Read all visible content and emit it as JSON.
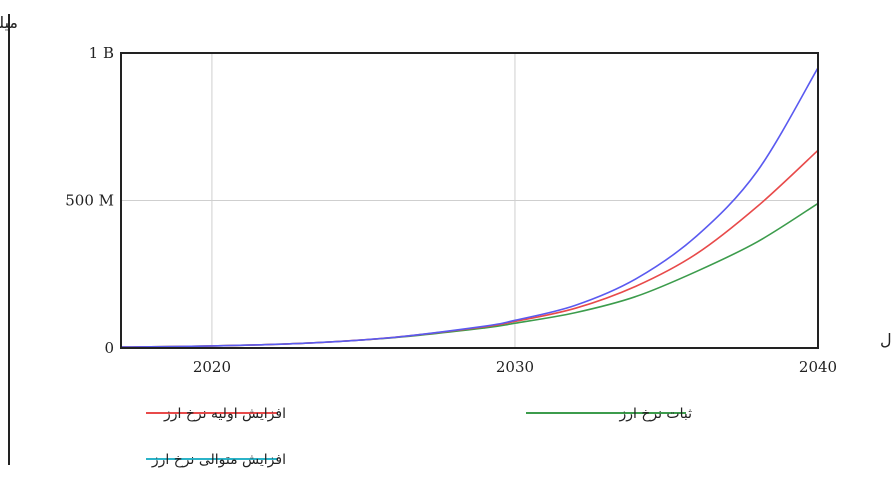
{
  "chart_data": {
    "type": "line",
    "title": "",
    "ylabel": "میلیارد ریال",
    "xlabel": "سال",
    "xlim": [
      2017,
      2040
    ],
    "ylim": [
      0,
      1000000000
    ],
    "x_ticks": [
      2020,
      2030,
      2040
    ],
    "x_tick_labels": [
      "2020",
      "2030",
      "2040"
    ],
    "y_ticks": [
      0,
      500000000,
      1000000000
    ],
    "y_tick_labels": [
      "0",
      "500 M",
      "1 B"
    ],
    "grid": true,
    "legend_position": "bottom",
    "x": [
      2017,
      2020,
      2023,
      2026,
      2029,
      2030,
      2032,
      2034,
      2036,
      2038,
      2040
    ],
    "series": [
      {
        "name": "افزایش اولیه نرخ ارز",
        "color": "#e84a4a",
        "values": [
          3000000,
          7000000,
          16000000,
          36000000,
          72000000,
          90000000,
          135000000,
          210000000,
          320000000,
          480000000,
          670000000
        ]
      },
      {
        "name": "ثبات نرخ ارز",
        "color": "#3c9c4c",
        "values": [
          3000000,
          7000000,
          16000000,
          35000000,
          68000000,
          84000000,
          120000000,
          175000000,
          260000000,
          360000000,
          490000000
        ]
      },
      {
        "name": "افزایش متوالی نرخ ارز",
        "color": "#5a5af0",
        "legend_color": "#2bb3c8",
        "values": [
          3000000,
          7000000,
          16000000,
          36000000,
          74000000,
          94000000,
          145000000,
          235000000,
          380000000,
          600000000,
          950000000
        ]
      }
    ]
  }
}
